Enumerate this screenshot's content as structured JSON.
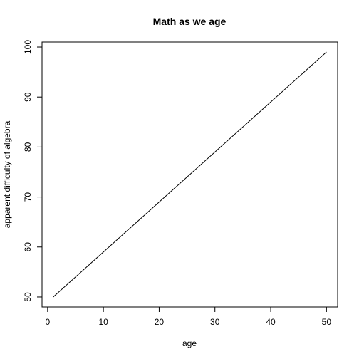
{
  "chart_data": {
    "type": "line",
    "title": "Math as we age",
    "xlabel": "age",
    "ylabel": "apparent difficulty of algebra",
    "xlim": [
      -1,
      52
    ],
    "ylim": [
      48,
      101
    ],
    "xticks": [
      0,
      10,
      20,
      30,
      40,
      50
    ],
    "yticks": [
      50,
      60,
      70,
      80,
      90,
      100
    ],
    "grid": false,
    "series": [
      {
        "x": [
          1,
          50
        ],
        "y": [
          50,
          99
        ],
        "color": "#000000"
      }
    ]
  }
}
